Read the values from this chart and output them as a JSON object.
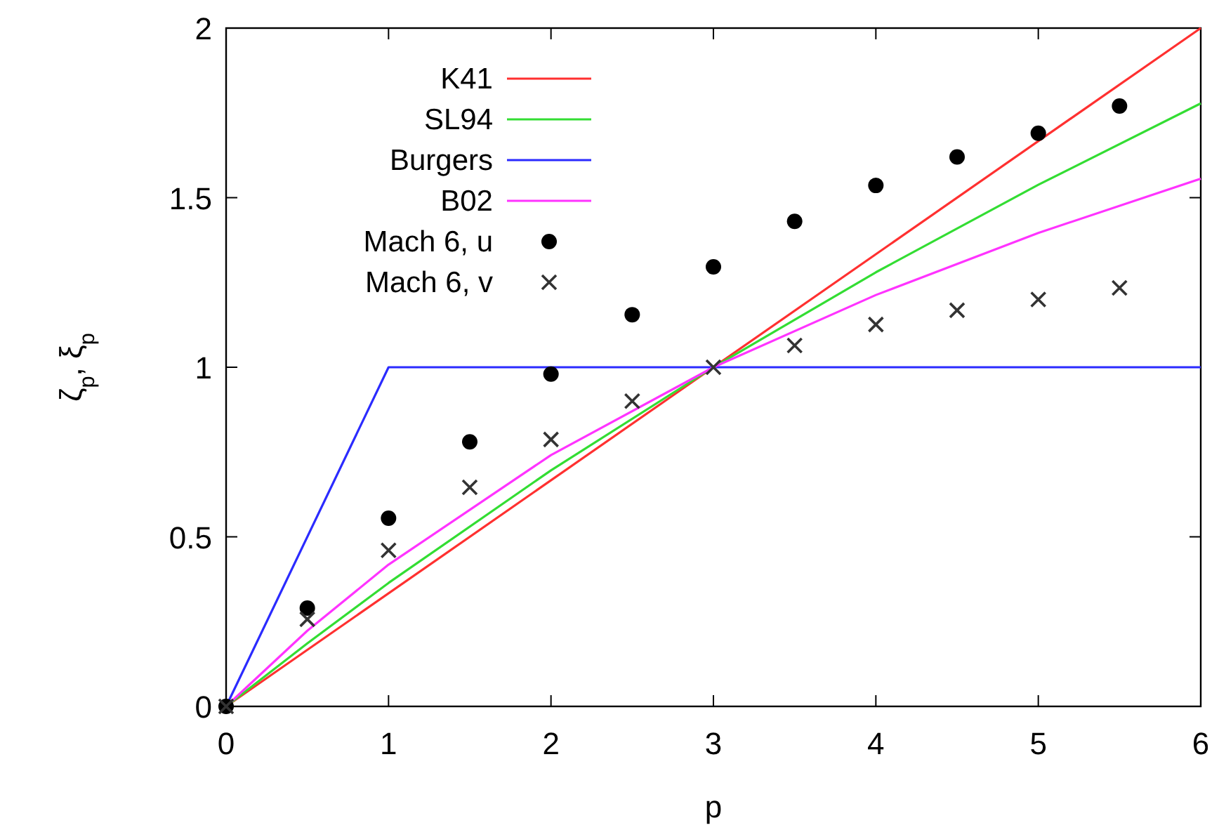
{
  "chart_data": {
    "type": "line",
    "xlabel": "p",
    "ylabel": "ζ$_{p}$, ξ$_{p}$",
    "xlim": [
      0,
      6
    ],
    "ylim": [
      0,
      2
    ],
    "xticks": [
      0,
      1,
      2,
      3,
      4,
      5,
      6
    ],
    "yticks": [
      0,
      0.5,
      1,
      1.5,
      2
    ],
    "grid": false,
    "legend": "top left",
    "line_style": "solid",
    "series": [
      {
        "name": "K41",
        "color": "#ff3030",
        "x": [
          0,
          6
        ],
        "values": [
          0,
          2
        ]
      },
      {
        "name": "SL94",
        "color": "#33dd33",
        "x": [
          0,
          0.5,
          1,
          2,
          3,
          4,
          5,
          6
        ],
        "values": [
          0,
          0.186,
          0.364,
          0.696,
          1,
          1.28,
          1.538,
          1.778
        ]
      },
      {
        "name": "Burgers",
        "color": "#2b2bff",
        "x": [
          0,
          1,
          6
        ],
        "values": [
          0,
          1,
          1
        ]
      },
      {
        "name": "B02",
        "color": "#ff33ff",
        "x": [
          0,
          0.5,
          1,
          2,
          3,
          4,
          5,
          6
        ],
        "values": [
          0,
          0.223,
          0.418,
          0.741,
          1,
          1.213,
          1.396,
          1.556
        ]
      },
      {
        "name": "Mach 6, u",
        "type": "scatter",
        "marker": "circle",
        "color": "#000000",
        "x": [
          0,
          0.5,
          1,
          1.5,
          2,
          2.5,
          3,
          3.5,
          4,
          4.5,
          5,
          5.5
        ],
        "values": [
          0,
          0.29,
          0.555,
          0.78,
          0.98,
          1.155,
          1.296,
          1.43,
          1.536,
          1.62,
          1.69,
          1.77
        ]
      },
      {
        "name": "Mach 6, v",
        "type": "scatter",
        "marker": "cross",
        "color": "#333333",
        "x": [
          0,
          0.5,
          1,
          1.5,
          2,
          2.5,
          3,
          3.5,
          4,
          4.5,
          5,
          5.5
        ],
        "values": [
          0,
          0.257,
          0.46,
          0.646,
          0.787,
          0.9,
          1.0,
          1.064,
          1.126,
          1.168,
          1.2,
          1.234
        ]
      }
    ]
  }
}
